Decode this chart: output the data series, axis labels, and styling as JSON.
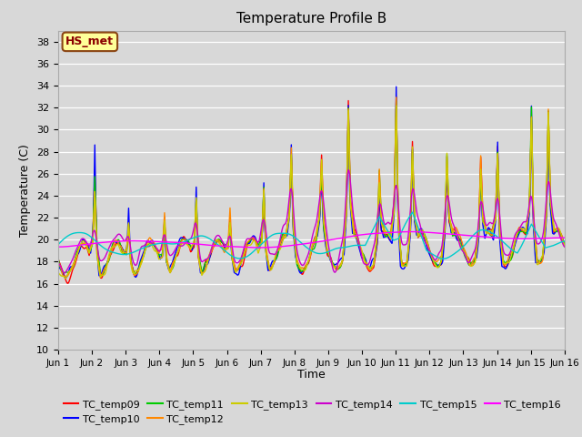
{
  "title": "Temperature Profile B",
  "xlabel": "Time",
  "ylabel": "Temperature (C)",
  "ylim": [
    10,
    39
  ],
  "yticks": [
    10,
    12,
    14,
    16,
    18,
    20,
    22,
    24,
    26,
    28,
    30,
    32,
    34,
    36,
    38
  ],
  "xtick_labels": [
    "Jun 1",
    "Jun 2",
    "Jun 3",
    "Jun 4",
    "Jun 5",
    "Jun 6",
    "Jun 7",
    "Jun 8",
    "Jun 9",
    "Jun 10",
    "Jun 11",
    "Jun 12",
    "Jun 13",
    "Jun 14",
    "Jun 15",
    "Jun 16"
  ],
  "bg_color": "#d8d8d8",
  "annotation_text": "HS_met",
  "annotation_color": "#8b0000",
  "annotation_bg": "#ffff99",
  "annotation_border": "#8b4513",
  "series_colors": {
    "TC_temp09": "#ff0000",
    "TC_temp10": "#0000ff",
    "TC_temp11": "#00cc00",
    "TC_temp12": "#ff8800",
    "TC_temp13": "#cccc00",
    "TC_temp14": "#cc00cc",
    "TC_temp15": "#00cccc",
    "TC_temp16": "#ff00ff"
  }
}
